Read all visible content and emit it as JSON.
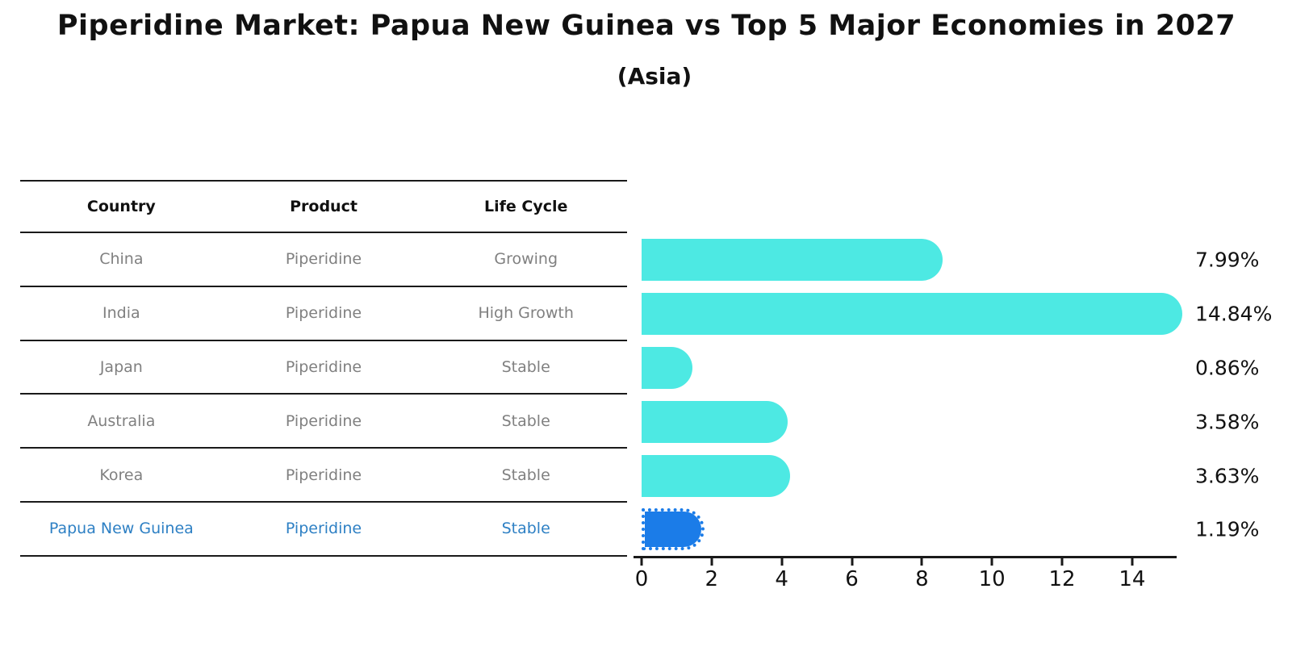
{
  "title": "Piperidine Market: Papua New Guinea vs Top 5 Major Economies in 2027",
  "subtitle": "(Asia)",
  "table": {
    "columns": [
      "Country",
      "Product",
      "Life Cycle"
    ],
    "rows": [
      {
        "country": "China",
        "product": "Piperidine",
        "life_cycle": "Growing",
        "highlight": false
      },
      {
        "country": "India",
        "product": "Piperidine",
        "life_cycle": "High Growth",
        "highlight": false
      },
      {
        "country": "Japan",
        "product": "Piperidine",
        "life_cycle": "Stable",
        "highlight": false
      },
      {
        "country": "Australia",
        "product": "Piperidine",
        "life_cycle": "Stable",
        "highlight": false
      },
      {
        "country": "Korea",
        "product": "Piperidine",
        "life_cycle": "Stable",
        "highlight": false
      },
      {
        "country": "Papua New Guinea",
        "product": "Piperidine",
        "life_cycle": "Stable",
        "highlight": true
      }
    ]
  },
  "chart_data": {
    "type": "bar",
    "orientation": "horizontal",
    "title": "Piperidine Market: Papua New Guinea vs Top 5 Major Economies in 2027",
    "subtitle": "(Asia)",
    "categories": [
      "China",
      "India",
      "Japan",
      "Australia",
      "Korea",
      "Papua New Guinea"
    ],
    "values": [
      7.99,
      14.84,
      0.86,
      3.58,
      3.63,
      1.19
    ],
    "data_labels": [
      "7.99%",
      "14.84%",
      "0.86%",
      "3.58%",
      "3.63%",
      "1.19%"
    ],
    "xlabel": "",
    "ylabel": "",
    "xlim": [
      0,
      15.3
    ],
    "xticks": [
      0,
      2,
      4,
      6,
      8,
      10,
      12,
      14
    ],
    "grid": false,
    "legend": "none",
    "bar_color": "#4de9e3",
    "highlight_color": "#1b7ce8",
    "highlight_text_color": "#2e80c4",
    "highlight_index": 5
  }
}
